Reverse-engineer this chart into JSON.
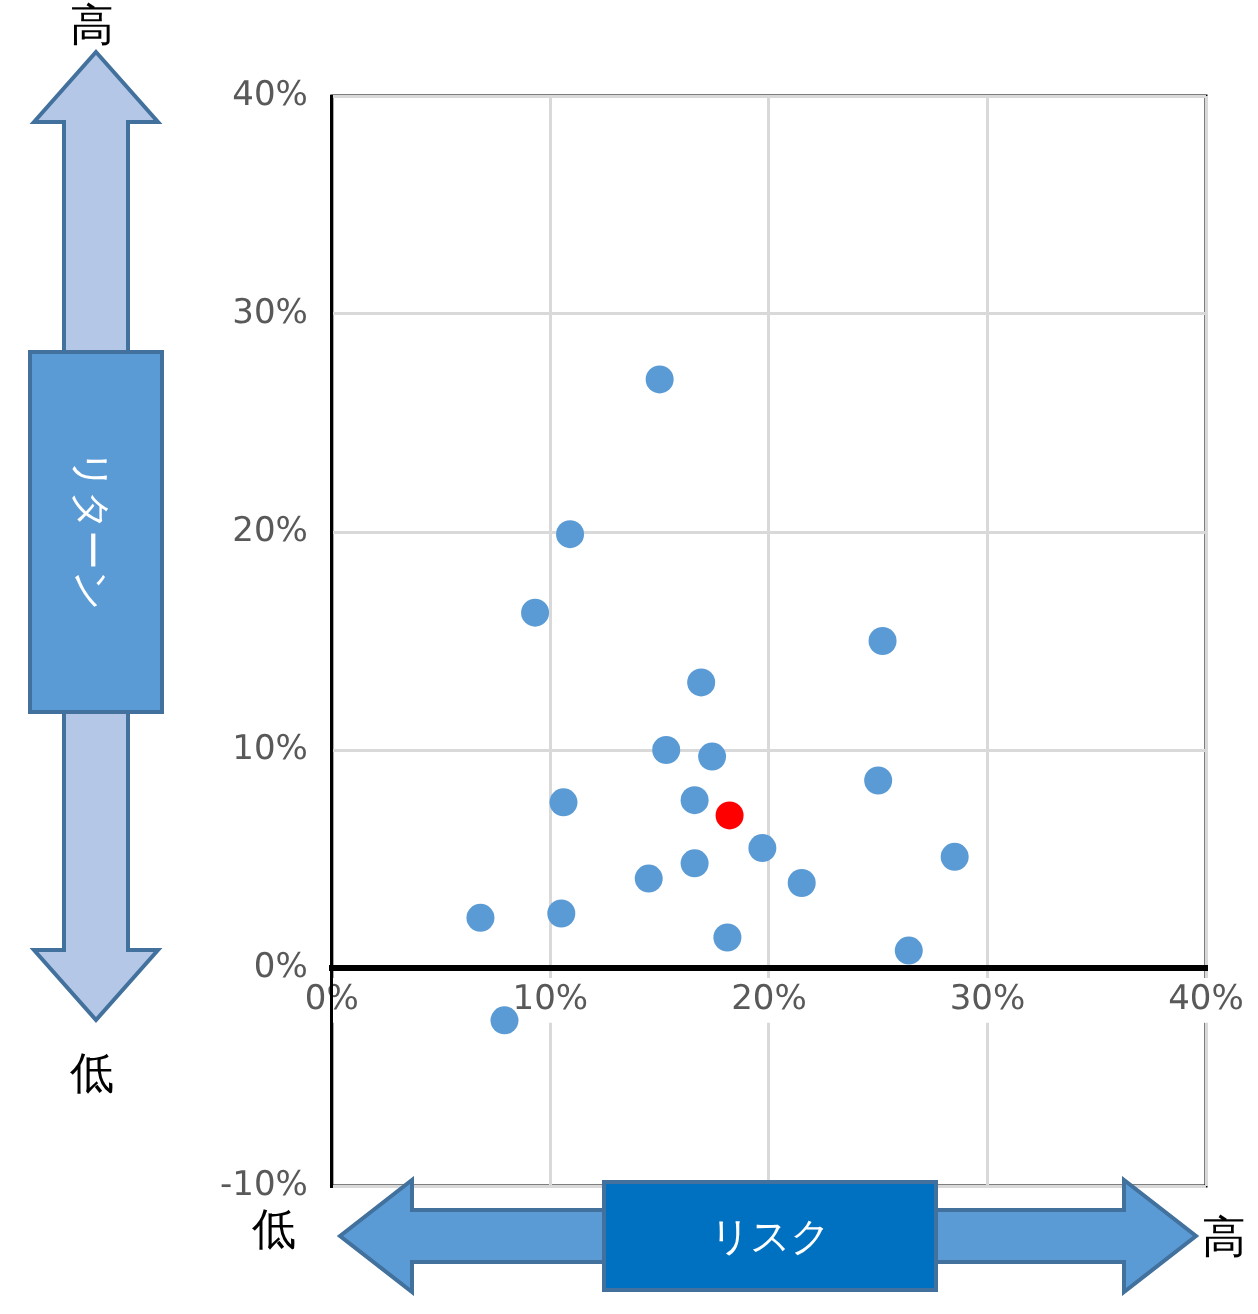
{
  "chart_data": {
    "type": "scatter",
    "xlabel": "リスク",
    "ylabel": "リターン",
    "annotations": [
      "高",
      "低",
      "低",
      "高"
    ],
    "series": [
      {
        "color": "#5b9bd5",
        "x": [
          15.0,
          10.9,
          9.3,
          16.9,
          15.3,
          17.4,
          10.6,
          16.6,
          19.7,
          14.5,
          16.6,
          21.5,
          6.8,
          10.5,
          18.1,
          7.9,
          25.2,
          25.0,
          28.5,
          26.4
        ],
        "values": [
          27.0,
          19.9,
          16.3,
          13.1,
          10.0,
          9.7,
          7.6,
          7.7,
          5.5,
          4.1,
          4.8,
          3.9,
          2.3,
          2.5,
          1.4,
          -2.4,
          15.0,
          8.6,
          5.1,
          0.8
        ]
      },
      {
        "color": "#ff0000",
        "x": [
          18.2
        ],
        "values": [
          7.0
        ]
      }
    ],
    "xlim": [
      0,
      40
    ],
    "ylim": [
      -10,
      40
    ],
    "xticks": [
      {
        "value": 0,
        "label": "0%"
      },
      {
        "value": 10,
        "label": "10%"
      },
      {
        "value": 20,
        "label": "20%"
      },
      {
        "value": 30,
        "label": "30%"
      },
      {
        "value": 40,
        "label": "40%"
      }
    ],
    "yticks": [
      {
        "value": -10,
        "label": "-10%"
      },
      {
        "value": 0,
        "label": "0%"
      },
      {
        "value": 10,
        "label": "10%"
      },
      {
        "value": 20,
        "label": "20%"
      },
      {
        "value": 30,
        "label": "30%"
      },
      {
        "value": 40,
        "label": "40%"
      }
    ],
    "grid": true,
    "legend": false,
    "marker": "circle"
  }
}
